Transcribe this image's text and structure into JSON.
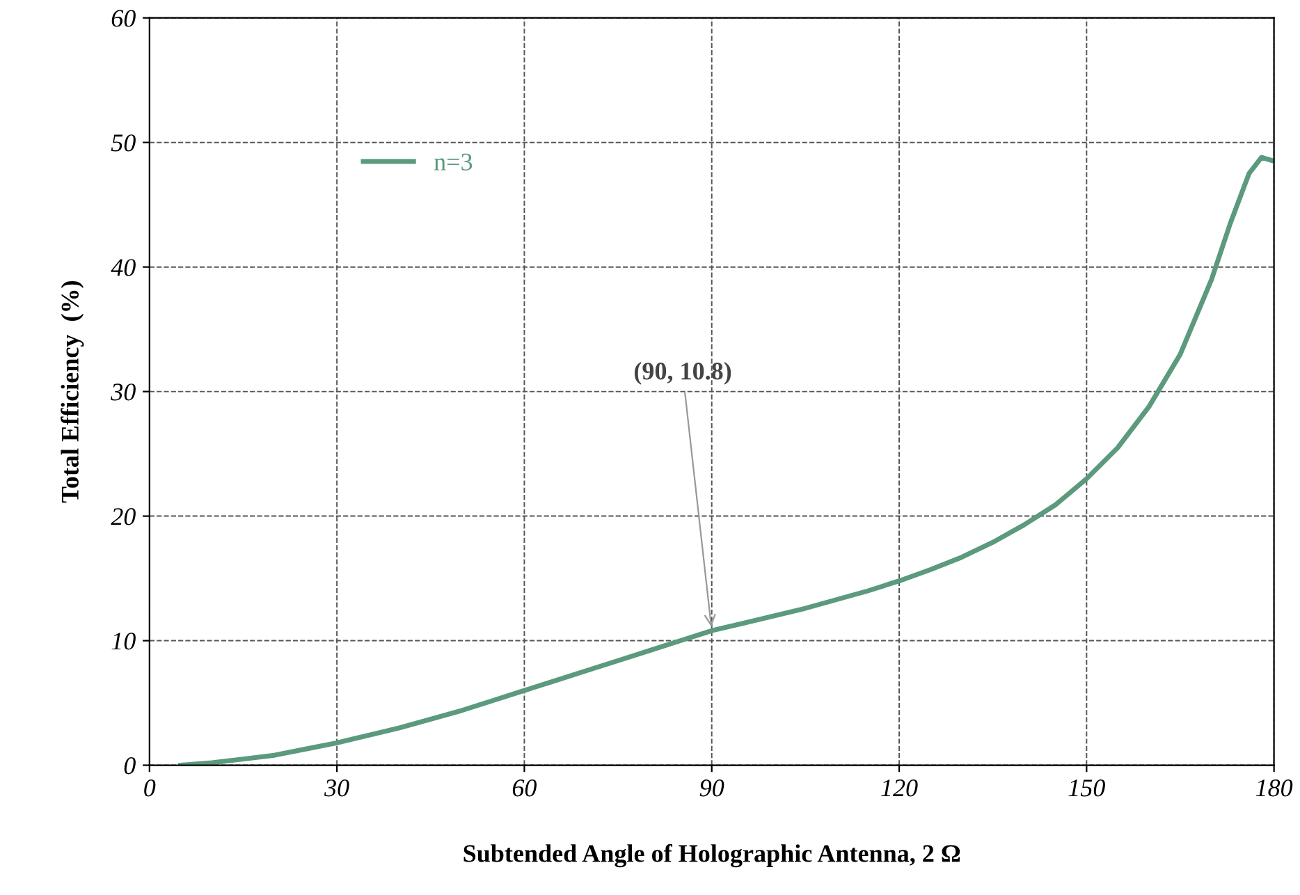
{
  "chart_data": {
    "type": "line",
    "xlabel": "Subtended Angle of Holographic Antenna, 2 Ω",
    "ylabel": "Total Efficiency  (%)",
    "series": [
      {
        "name": "n=3",
        "color": "#5b9a7c",
        "x": [
          5,
          10,
          15,
          20,
          25,
          30,
          35,
          40,
          45,
          50,
          55,
          60,
          65,
          70,
          75,
          80,
          85,
          90,
          95,
          100,
          105,
          110,
          115,
          120,
          125,
          130,
          135,
          140,
          145,
          150,
          155,
          160,
          165,
          170,
          173,
          176,
          178,
          180
        ],
        "values": [
          0,
          0.2,
          0.5,
          0.8,
          1.3,
          1.8,
          2.4,
          3.0,
          3.7,
          4.4,
          5.2,
          6.0,
          6.8,
          7.6,
          8.4,
          9.2,
          10.0,
          10.8,
          11.4,
          12.0,
          12.6,
          13.3,
          14.0,
          14.8,
          15.7,
          16.7,
          17.9,
          19.3,
          20.9,
          23.0,
          25.5,
          28.8,
          33.0,
          39.0,
          43.5,
          47.5,
          48.8,
          48.5
        ]
      }
    ],
    "annotations": [
      {
        "text": "(90, 10.8)",
        "x": 90,
        "y": 10.8
      }
    ],
    "xlim": [
      0,
      180
    ],
    "ylim": [
      0,
      60
    ],
    "xticks": [
      0,
      30,
      60,
      90,
      120,
      150,
      180
    ],
    "yticks": [
      0,
      10,
      20,
      30,
      40,
      50,
      60
    ],
    "grid": true,
    "legend": "top left",
    "line_style": "solid",
    "marker": "none"
  }
}
